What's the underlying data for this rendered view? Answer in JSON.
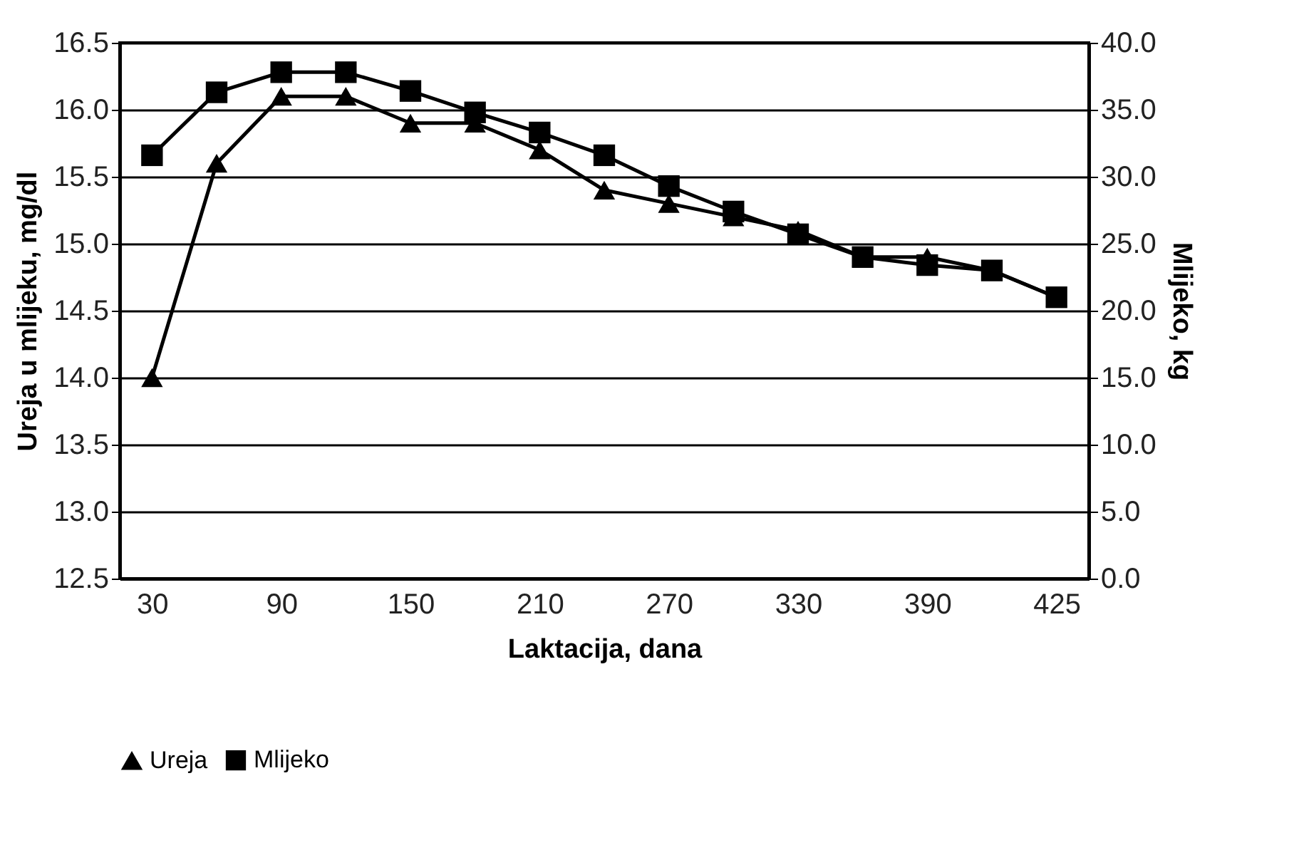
{
  "chart_data": {
    "type": "line",
    "xlabel": "Laktacija, dana",
    "ylabel": "Ureja u mlijeku, mg/dl",
    "y2label": "Mlijeko, kg",
    "categories": [
      "30",
      null,
      "90",
      null,
      "150",
      null,
      "210",
      null,
      "270",
      null,
      "330",
      null,
      "390",
      null,
      "425"
    ],
    "series": [
      {
        "name": "Ureja",
        "color": "#000000",
        "marker": "triangle",
        "values": [
          14.0,
          15.6,
          16.1,
          16.1,
          15.9,
          15.9,
          15.7,
          15.4,
          15.3,
          15.2,
          15.1,
          14.9,
          14.9,
          14.8,
          14.6
        ]
      },
      {
        "name": "Mlijeko",
        "color": "#000000",
        "marker": "square",
        "axis": "y2",
        "values": [
          31.6,
          36.3,
          37.8,
          37.8,
          36.4,
          34.8,
          33.3,
          31.6,
          29.3,
          27.4,
          25.7,
          24.0,
          23.4,
          23.0,
          21.0
        ]
      }
    ],
    "ylim": [
      12.5,
      16.5
    ],
    "yticks": [
      12.5,
      {
        "value": 13,
        "label": "13.0"
      },
      13.5,
      {
        "value": 14,
        "label": "14.0"
      },
      14.5,
      {
        "value": 15,
        "label": "15.0"
      },
      15.5,
      {
        "value": 16,
        "label": "16.0"
      },
      16.5
    ],
    "y2lim": [
      0,
      40
    ],
    "y2ticks": [
      {
        "value": 0,
        "label": "0.0"
      },
      {
        "value": 5,
        "label": "5.0"
      },
      {
        "value": 10,
        "label": "10.0"
      },
      {
        "value": 15,
        "label": "15.0"
      },
      {
        "value": 20,
        "label": "20.0"
      },
      {
        "value": 25,
        "label": "25.0"
      },
      {
        "value": 30,
        "label": "30.0"
      },
      {
        "value": 35,
        "label": "35.0"
      },
      {
        "value": 40,
        "label": "40.0"
      }
    ],
    "grid": "y",
    "legend": "bottom",
    "line_style": "solid"
  }
}
